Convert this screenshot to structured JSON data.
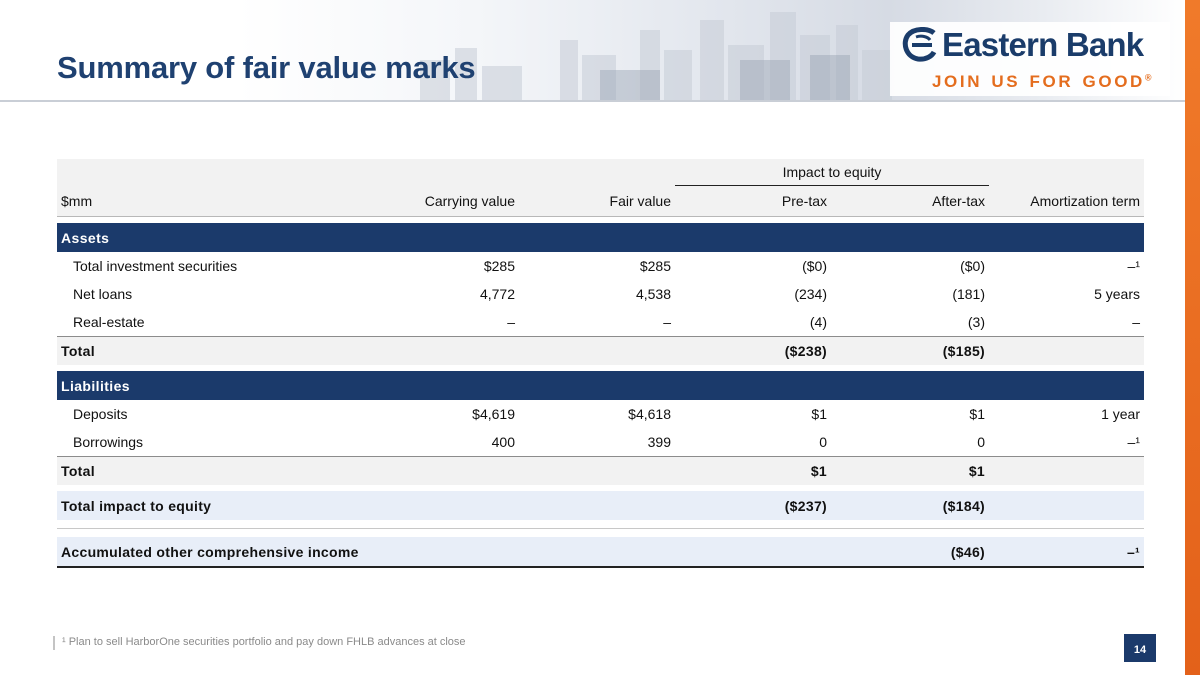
{
  "header": {
    "title": "Summary of fair value marks"
  },
  "logo": {
    "name": "Eastern Bank",
    "tagline": "JOIN US FOR GOOD",
    "registered_mark": "®"
  },
  "colors": {
    "navy": "#1b3a6b",
    "title_blue": "#1f4171",
    "orange": "#e46d1e"
  },
  "table": {
    "impact_header": "Impact to equity",
    "columns": [
      "$mm",
      "Carrying value",
      "Fair value",
      "Pre-tax",
      "After-tax",
      "Amortization term"
    ],
    "assets": {
      "section": "Assets",
      "rows": [
        {
          "label": "Total investment securities",
          "carrying": "$285",
          "fair": "$285",
          "pretax": "($0)",
          "aftertax": "($0)",
          "term": "–¹"
        },
        {
          "label": "Net loans",
          "carrying": "4,772",
          "fair": "4,538",
          "pretax": "(234)",
          "aftertax": "(181)",
          "term": "5 years"
        },
        {
          "label": "Real-estate",
          "carrying": "–",
          "fair": "–",
          "pretax": "(4)",
          "aftertax": "(3)",
          "term": "–"
        }
      ],
      "total": {
        "label": "Total",
        "pretax": "($238)",
        "aftertax": "($185)"
      }
    },
    "liabilities": {
      "section": "Liabilities",
      "rows": [
        {
          "label": "Deposits",
          "carrying": "$4,619",
          "fair": "$4,618",
          "pretax": "$1",
          "aftertax": "$1",
          "term": "1 year"
        },
        {
          "label": "Borrowings",
          "carrying": "400",
          "fair": "399",
          "pretax": "0",
          "aftertax": "0",
          "term": "–¹"
        }
      ],
      "total": {
        "label": "Total",
        "pretax": "$1",
        "aftertax": "$1"
      }
    },
    "total_impact": {
      "label": "Total impact to equity",
      "pretax": "($237)",
      "aftertax": "($184)"
    },
    "aoci": {
      "label": "Accumulated other comprehensive income",
      "aftertax": "($46)",
      "term": "–¹"
    }
  },
  "footer": {
    "footnote": "¹ Plan to sell HarborOne securities portfolio and pay down FHLB advances at close",
    "page_number": "14"
  }
}
